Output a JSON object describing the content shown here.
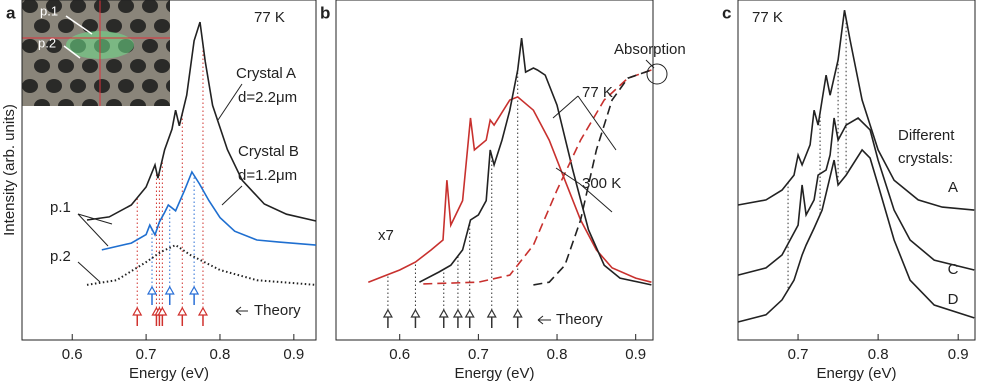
{
  "chart_data": [
    {
      "type": "line",
      "panel_label": "a",
      "x_label": "Energy (eV)",
      "y_label": "Intensity (arb. units)",
      "xlim": [
        0.532,
        0.93
      ],
      "xticks": [
        0.6,
        0.7,
        0.8,
        0.9
      ],
      "ylim": [
        0,
        100
      ],
      "series": [
        {
          "name": "Crystal A",
          "color": "#222222",
          "dash": "solid",
          "x": [
            0.62,
            0.65,
            0.68,
            0.7,
            0.712,
            0.716,
            0.725,
            0.735,
            0.74,
            0.745,
            0.755,
            0.765,
            0.773,
            0.78,
            0.79,
            0.81,
            0.83,
            0.86,
            0.89,
            0.93
          ],
          "values": [
            35.3,
            36.2,
            39.7,
            45,
            51.5,
            47.6,
            55.9,
            62,
            67.6,
            63,
            72,
            88,
            93.5,
            82,
            69,
            56,
            47,
            40,
            37,
            35
          ]
        },
        {
          "name": "Crystal B",
          "color": "#1f6fd0",
          "dash": "solid",
          "x": [
            0.64,
            0.68,
            0.7,
            0.705,
            0.712,
            0.718,
            0.725,
            0.73,
            0.74,
            0.752,
            0.762,
            0.772,
            0.785,
            0.8,
            0.82,
            0.85,
            0.88,
            0.93
          ],
          "values": [
            26.5,
            28.5,
            31,
            33.8,
            30.9,
            34.7,
            37.5,
            39.7,
            38,
            44,
            49.4,
            46,
            41,
            36,
            32,
            29.4,
            28.8,
            27.9
          ]
        },
        {
          "color": "#222222",
          "dash": "dot",
          "x": [
            0.62,
            0.66,
            0.7,
            0.72,
            0.74,
            0.76,
            0.8,
            0.85,
            0.93
          ],
          "values": [
            16.2,
            17.6,
            22.9,
            25.9,
            27.9,
            25,
            20.6,
            17.6,
            16.2
          ]
        }
      ],
      "theory": [
        {
          "color": "#d0312d",
          "x": [
            0.688,
            0.714,
            0.718,
            0.722,
            0.749,
            0.777
          ]
        },
        {
          "color": "#2a6fd6",
          "x": [
            0.708,
            0.732,
            0.765
          ]
        }
      ],
      "annotations": [
        "77 K",
        "d=2.2μm",
        "d=1.2μm",
        "p.1",
        "p.2",
        "Theory"
      ],
      "inset_labels": [
        "p.1",
        "p.2"
      ]
    },
    {
      "type": "line",
      "panel_label": "b",
      "x_label": "Energy (eV)",
      "xlim": [
        0.519,
        0.922
      ],
      "xticks": [
        0.6,
        0.7,
        0.8,
        0.9
      ],
      "ylim": [
        0,
        100
      ],
      "series": [
        {
          "color": "#c8312e",
          "dash": "solid",
          "x": [
            0.56,
            0.6,
            0.62,
            0.64,
            0.655,
            0.66,
            0.665,
            0.68,
            0.69,
            0.695,
            0.71,
            0.715,
            0.72,
            0.74,
            0.75,
            0.77,
            0.79,
            0.81,
            0.83,
            0.85,
            0.87,
            0.9,
            0.92
          ],
          "values": [
            17,
            20.6,
            22.9,
            26.5,
            29.4,
            47,
            33.8,
            41,
            65.3,
            55.9,
            58.8,
            64.7,
            63.2,
            70.6,
            71.5,
            67.6,
            58.8,
            47,
            35.3,
            26.5,
            21.2,
            18.2,
            17
          ]
        },
        {
          "color": "#222222",
          "dash": "solid",
          "x": [
            0.625,
            0.65,
            0.665,
            0.68,
            0.69,
            0.7,
            0.71,
            0.715,
            0.72,
            0.73,
            0.74,
            0.75,
            0.755,
            0.76,
            0.77,
            0.775,
            0.785,
            0.8,
            0.82,
            0.84,
            0.86,
            0.88,
            0.92
          ],
          "values": [
            17,
            20,
            22,
            26.5,
            35.3,
            36.8,
            41,
            55.9,
            51.5,
            58.8,
            67.6,
            79.4,
            88.8,
            78.8,
            80,
            79.4,
            77.9,
            69.1,
            50,
            32.4,
            22,
            18.2,
            16.2
          ]
        },
        {
          "color": "#c8312e",
          "dash": "dash",
          "x": [
            0.63,
            0.7,
            0.74,
            0.77,
            0.8,
            0.83,
            0.86,
            0.89,
            0.92
          ],
          "values": [
            16.5,
            17,
            19.1,
            27.9,
            44.1,
            58.8,
            70.6,
            77,
            79.4
          ]
        },
        {
          "color": "#222222",
          "dash": "dash",
          "x": [
            0.77,
            0.79,
            0.81,
            0.83,
            0.85,
            0.87,
            0.89,
            0.92
          ],
          "values": [
            16.2,
            17,
            22,
            35.3,
            55.9,
            70.6,
            77,
            79.4
          ]
        }
      ],
      "theory": [
        {
          "color": "#333333",
          "x": [
            0.585,
            0.62,
            0.656,
            0.674,
            0.689,
            0.717,
            0.75
          ]
        }
      ],
      "annotations": [
        "x7",
        "77 K",
        "300 K",
        "Absorption",
        "Theory"
      ]
    },
    {
      "type": "line",
      "panel_label": "c",
      "x_label": "Energy (eV)",
      "xlim": [
        0.625,
        0.921
      ],
      "xticks": [
        0.7,
        0.8,
        0.9
      ],
      "ylim": [
        0,
        100
      ],
      "series": [
        {
          "name": "A",
          "color": "#222222",
          "dash": "solid",
          "x": [
            0.625,
            0.66,
            0.68,
            0.695,
            0.7,
            0.705,
            0.715,
            0.72,
            0.725,
            0.73,
            0.735,
            0.74,
            0.75,
            0.758,
            0.765,
            0.78,
            0.8,
            0.82,
            0.85,
            0.88,
            0.92
          ],
          "values": [
            39.7,
            41.2,
            44.1,
            48.5,
            54.4,
            51.5,
            57.4,
            67.6,
            63.2,
            70.6,
            77.9,
            72,
            82.4,
            97,
            88.2,
            70.6,
            55.9,
            47,
            41.2,
            39.1,
            38.2
          ]
        },
        {
          "name": "C",
          "color": "#222222",
          "dash": "solid",
          "x": [
            0.625,
            0.66,
            0.68,
            0.7,
            0.705,
            0.71,
            0.72,
            0.725,
            0.735,
            0.74,
            0.745,
            0.75,
            0.76,
            0.775,
            0.79,
            0.8,
            0.82,
            0.84,
            0.87,
            0.92
          ],
          "values": [
            19.1,
            21.2,
            25,
            33.8,
            45.6,
            36.8,
            41.2,
            48.5,
            50,
            54.4,
            65.3,
            58.8,
            63.2,
            65.3,
            61.8,
            52.9,
            38.2,
            29.4,
            23.5,
            20.6
          ]
        },
        {
          "name": "D",
          "color": "#222222",
          "dash": "solid",
          "x": [
            0.625,
            0.66,
            0.68,
            0.695,
            0.705,
            0.71,
            0.72,
            0.73,
            0.745,
            0.75,
            0.76,
            0.78,
            0.79,
            0.8,
            0.82,
            0.84,
            0.87,
            0.92
          ],
          "values": [
            5.3,
            7.4,
            11.8,
            17.6,
            25,
            27.9,
            32.9,
            38.2,
            52.9,
            45.6,
            48.5,
            55.9,
            53.5,
            45.6,
            29.4,
            17.6,
            10.3,
            6.5
          ]
        }
      ],
      "guides": [
        0.6875,
        0.7275,
        0.75,
        0.76
      ],
      "annotations": [
        "77 K",
        "Different crystals:"
      ]
    }
  ]
}
